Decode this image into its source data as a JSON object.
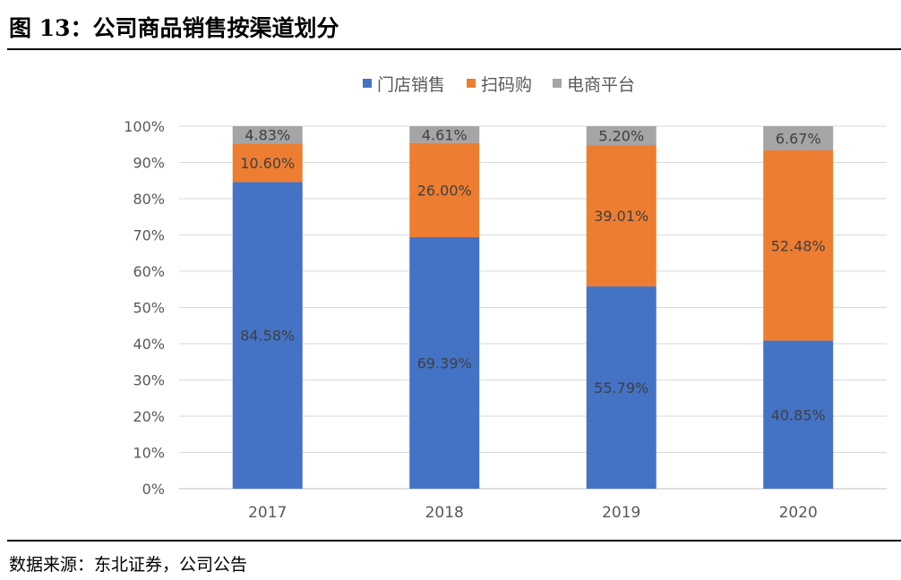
{
  "title": "图 13：公司商品销售按渠道划分",
  "source": "数据来源：东北证券，公司公告",
  "chart_data": {
    "type": "bar",
    "stacked": true,
    "categories": [
      "2017",
      "2018",
      "2019",
      "2020"
    ],
    "series": [
      {
        "name": "门店销售",
        "color": "#4472C4",
        "values": [
          84.58,
          69.39,
          55.79,
          40.85
        ],
        "labels": [
          "84.58%",
          "69.39%",
          "55.79%",
          "40.85%"
        ]
      },
      {
        "name": "扫码购",
        "color": "#ED7D31",
        "values": [
          10.6,
          26.0,
          39.01,
          52.48
        ],
        "labels": [
          "10.60%",
          "26.00%",
          "39.01%",
          "52.48%"
        ]
      },
      {
        "name": "电商平台",
        "color": "#A5A5A5",
        "values": [
          4.83,
          4.61,
          5.2,
          6.67
        ],
        "labels": [
          "4.83%",
          "4.61%",
          "5.20%",
          "6.67%"
        ]
      }
    ],
    "yticks": [
      "0%",
      "10%",
      "20%",
      "30%",
      "40%",
      "50%",
      "60%",
      "70%",
      "80%",
      "90%",
      "100%"
    ],
    "ylim": [
      0,
      100
    ],
    "grid": true,
    "legend": "top"
  }
}
